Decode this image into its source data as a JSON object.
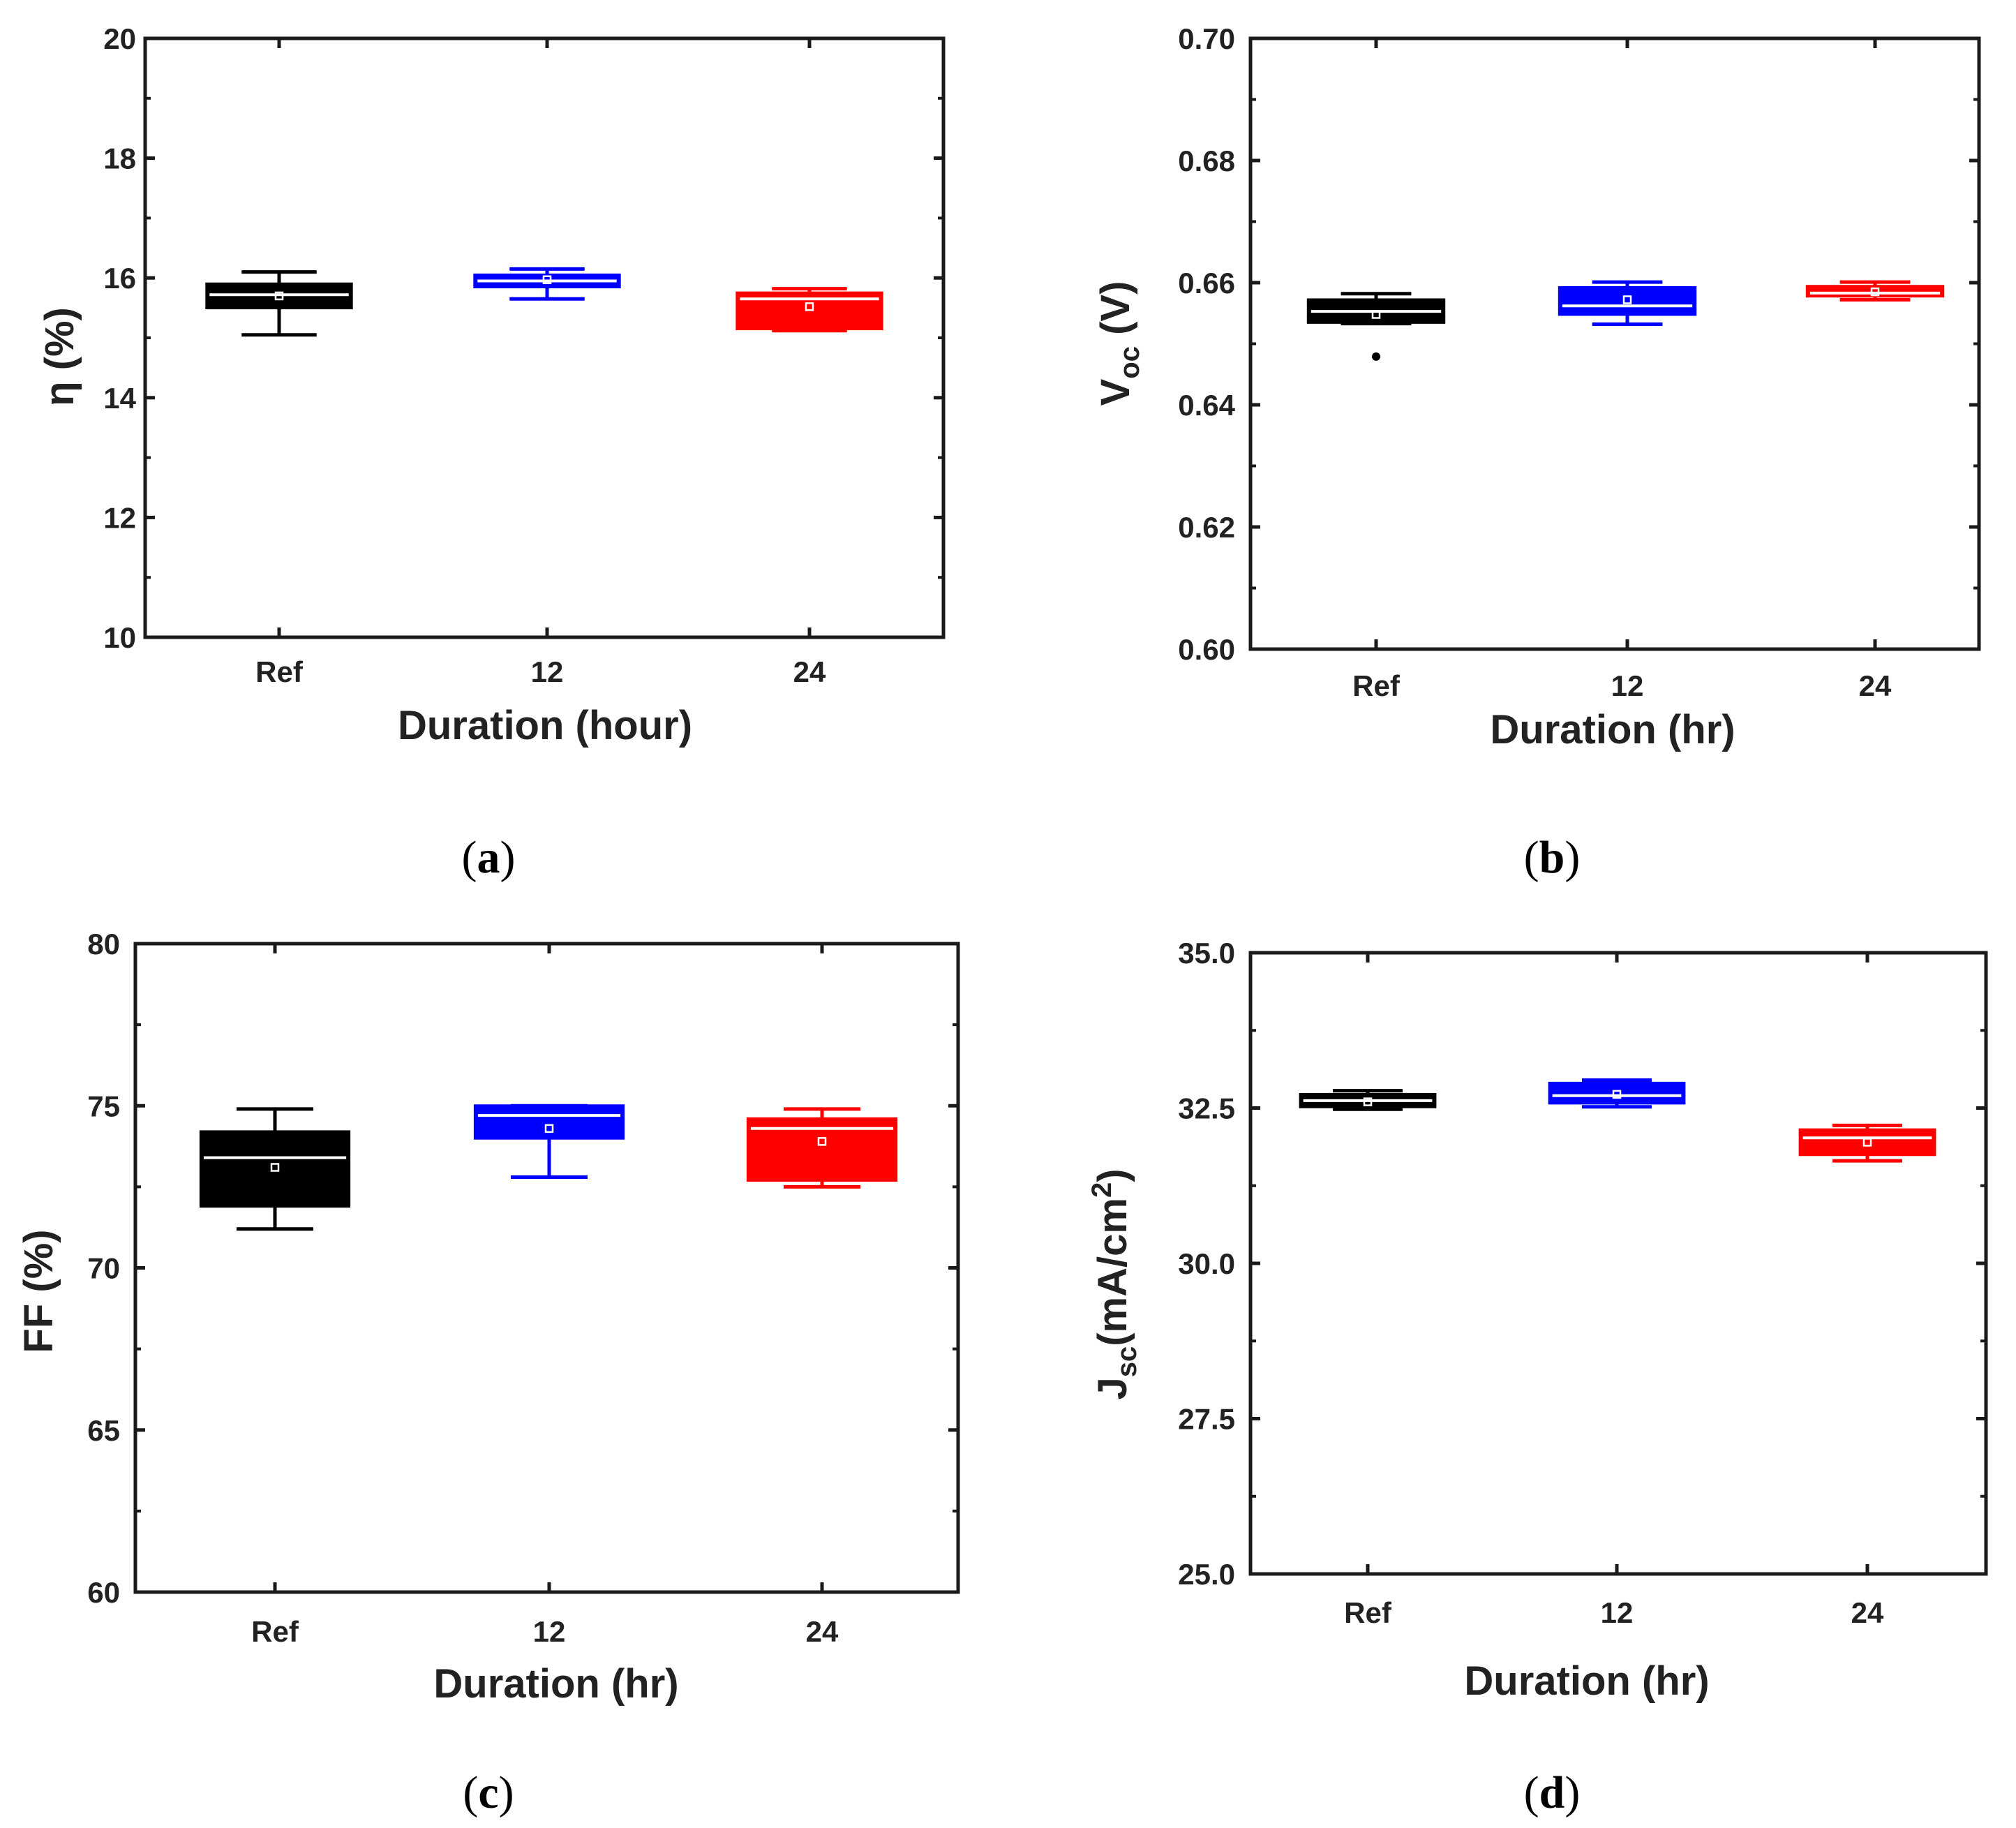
{
  "chart_data": [
    {
      "id": "a",
      "type": "box",
      "panel_label": "a",
      "categories": [
        "Ref",
        "12",
        "24"
      ],
      "xlabel": "Duration (hour)",
      "ylabel_main": "η (%)",
      "ylim": [
        10,
        20
      ],
      "yticks": [
        "10",
        "12",
        "14",
        "16",
        "18",
        "20"
      ],
      "boxes": [
        {
          "name": "Ref",
          "color": "#000000",
          "whisker_low": 15.05,
          "q1": 15.5,
          "median": 15.72,
          "q3": 15.9,
          "whisker_high": 16.1,
          "mean": 15.7,
          "outliers": []
        },
        {
          "name": "12",
          "color": "#0000ff",
          "whisker_low": 15.65,
          "q1": 15.85,
          "median": 15.95,
          "q3": 16.05,
          "whisker_high": 16.15,
          "mean": 15.97,
          "outliers": []
        },
        {
          "name": "24",
          "color": "#ff0000",
          "whisker_low": 15.12,
          "q1": 15.15,
          "median": 15.65,
          "q3": 15.75,
          "whisker_high": 15.82,
          "mean": 15.52,
          "outliers": []
        }
      ]
    },
    {
      "id": "b",
      "type": "box",
      "panel_label": "b",
      "categories": [
        "Ref",
        "12",
        "24"
      ],
      "xlabel": "Duration (hr)",
      "ylabel_main": "V",
      "ylabel_sub": "oc",
      "ylabel_tail": " (V)",
      "ylim": [
        0.6,
        0.7
      ],
      "yticks": [
        "0.60",
        "0.62",
        "0.64",
        "0.66",
        "0.68",
        "0.70"
      ],
      "boxes": [
        {
          "name": "Ref",
          "color": "#000000",
          "whisker_low": 0.6533,
          "q1": 0.6535,
          "median": 0.6553,
          "q3": 0.6572,
          "whisker_high": 0.6582,
          "mean": 0.6548,
          "outliers": [
            0.6479
          ]
        },
        {
          "name": "12",
          "color": "#0000ff",
          "whisker_low": 0.6532,
          "q1": 0.6548,
          "median": 0.6562,
          "q3": 0.6592,
          "whisker_high": 0.6601,
          "mean": 0.6572,
          "outliers": []
        },
        {
          "name": "24",
          "color": "#ff0000",
          "whisker_low": 0.6572,
          "q1": 0.6578,
          "median": 0.6583,
          "q3": 0.6594,
          "whisker_high": 0.6601,
          "mean": 0.6585,
          "outliers": []
        }
      ]
    },
    {
      "id": "c",
      "type": "box",
      "panel_label": "c",
      "categories": [
        "Ref",
        "12",
        "24"
      ],
      "xlabel": "Duration (hr)",
      "ylabel_main": "FF (%)",
      "ylim": [
        60,
        80
      ],
      "yticks": [
        "60",
        "65",
        "70",
        "75",
        "80"
      ],
      "boxes": [
        {
          "name": "Ref",
          "color": "#000000",
          "whisker_low": 71.2,
          "q1": 71.9,
          "median": 73.4,
          "q3": 74.2,
          "whisker_high": 74.9,
          "mean": 73.1,
          "outliers": []
        },
        {
          "name": "12",
          "color": "#0000ff",
          "whisker_low": 72.8,
          "q1": 74.0,
          "median": 74.7,
          "q3": 75.0,
          "whisker_high": 75.0,
          "mean": 74.3,
          "outliers": []
        },
        {
          "name": "24",
          "color": "#ff0000",
          "whisker_low": 72.5,
          "q1": 72.7,
          "median": 74.3,
          "q3": 74.6,
          "whisker_high": 74.9,
          "mean": 73.9,
          "outliers": []
        }
      ]
    },
    {
      "id": "d",
      "type": "box",
      "panel_label": "d",
      "categories": [
        "Ref",
        "12",
        "24"
      ],
      "xlabel": "Duration (hr)",
      "ylabel_main": "J",
      "ylabel_sub": "sc",
      "ylabel_tail": "(mA/cm",
      "ylabel_sup": "2",
      "ylabel_end": ")",
      "ylim": [
        25,
        35
      ],
      "yticks": [
        "25.0",
        "27.5",
        "30.0",
        "32.5",
        "35.0"
      ],
      "boxes": [
        {
          "name": "Ref",
          "color": "#000000",
          "whisker_low": 32.48,
          "q1": 32.52,
          "median": 32.62,
          "q3": 32.72,
          "whisker_high": 32.78,
          "mean": 32.6,
          "outliers": []
        },
        {
          "name": "12",
          "color": "#0000ff",
          "whisker_low": 32.52,
          "q1": 32.58,
          "median": 32.7,
          "q3": 32.9,
          "whisker_high": 32.95,
          "mean": 32.72,
          "outliers": []
        },
        {
          "name": "24",
          "color": "#ff0000",
          "whisker_low": 31.65,
          "q1": 31.75,
          "median": 32.02,
          "q3": 32.15,
          "whisker_high": 32.22,
          "mean": 31.95,
          "outliers": []
        }
      ]
    }
  ]
}
